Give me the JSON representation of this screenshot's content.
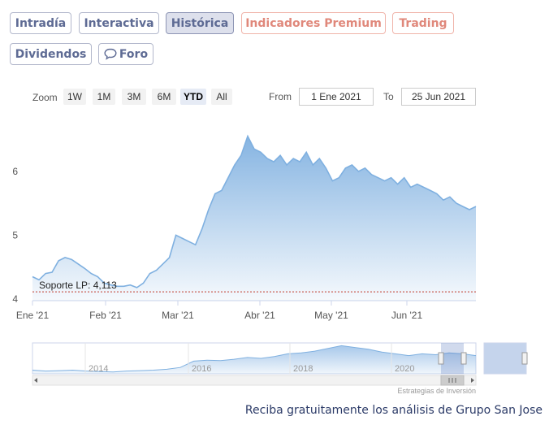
{
  "tabs": [
    {
      "label": "Intradía",
      "active": false,
      "premium": false
    },
    {
      "label": "Interactiva",
      "active": false,
      "premium": false
    },
    {
      "label": "Histórica",
      "active": true,
      "premium": false
    },
    {
      "label": "Indicadores Premium",
      "active": false,
      "premium": true
    },
    {
      "label": "Trading",
      "active": false,
      "premium": true
    },
    {
      "label": "Dividendos",
      "active": false,
      "premium": false
    },
    {
      "label": "Foro",
      "active": false,
      "premium": false,
      "icon": "speech-bubble-icon"
    }
  ],
  "zoom": {
    "label": "Zoom",
    "buttons": [
      "1W",
      "1M",
      "3M",
      "6M",
      "YTD",
      "All"
    ],
    "selected": "YTD"
  },
  "range": {
    "from_label": "From",
    "from_value": "1 Ene 2021",
    "to_label": "To",
    "to_value": "25 Jun 2021"
  },
  "colors": {
    "series_line": "#7fb0e0",
    "area_top": "#7fb0e0",
    "support_line": "#c0392b",
    "tab_text": "#5e6b94",
    "premium_text": "#e0887b"
  },
  "chart_data": {
    "type": "area",
    "x_labels": [
      "Ene '21",
      "Feb '21",
      "Mar '21",
      "Abr '21",
      "May '21",
      "Jun '21"
    ],
    "y_ticks": [
      4,
      5,
      6
    ],
    "ylim": [
      4,
      6.8
    ],
    "grid": false,
    "series": [
      {
        "values": [
          4.35,
          4.3,
          4.4,
          4.42,
          4.6,
          4.65,
          4.62,
          4.55,
          4.48,
          4.4,
          4.35,
          4.25,
          4.22,
          4.2,
          4.2,
          4.22,
          4.18,
          4.25,
          4.4,
          4.45,
          4.55,
          4.65,
          5.0,
          4.95,
          4.9,
          4.85,
          5.1,
          5.4,
          5.65,
          5.7,
          5.9,
          6.1,
          6.25,
          6.55,
          6.35,
          6.3,
          6.2,
          6.15,
          6.25,
          6.1,
          6.2,
          6.15,
          6.3,
          6.1,
          6.2,
          6.05,
          5.85,
          5.9,
          6.05,
          6.1,
          6.0,
          6.05,
          5.95,
          5.9,
          5.85,
          5.9,
          5.8,
          5.9,
          5.75,
          5.8,
          5.75,
          5.7,
          5.65,
          5.55,
          5.6,
          5.5,
          5.45,
          5.4,
          5.45
        ]
      }
    ],
    "annotations": [
      {
        "label": "Soporte LP: 4,113",
        "value": 4.113
      }
    ],
    "navigator": {
      "x_labels": [
        "2014",
        "2016",
        "2018",
        "2020"
      ],
      "values": [
        4.2,
        4.1,
        4.15,
        4.2,
        4.1,
        4.05,
        4.0,
        4.1,
        4.15,
        4.2,
        4.3,
        4.5,
        5.2,
        5.3,
        5.25,
        5.4,
        5.6,
        5.5,
        5.7,
        6.0,
        6.1,
        6.3,
        6.6,
        6.9,
        6.7,
        6.5,
        6.2,
        6.0,
        5.8,
        6.0,
        5.9,
        6.1,
        6.0,
        5.8
      ]
    }
  },
  "credits": "Estrategias de Inversión",
  "footer": "Reciba gratuitamente los análisis de Grupo San Jose"
}
